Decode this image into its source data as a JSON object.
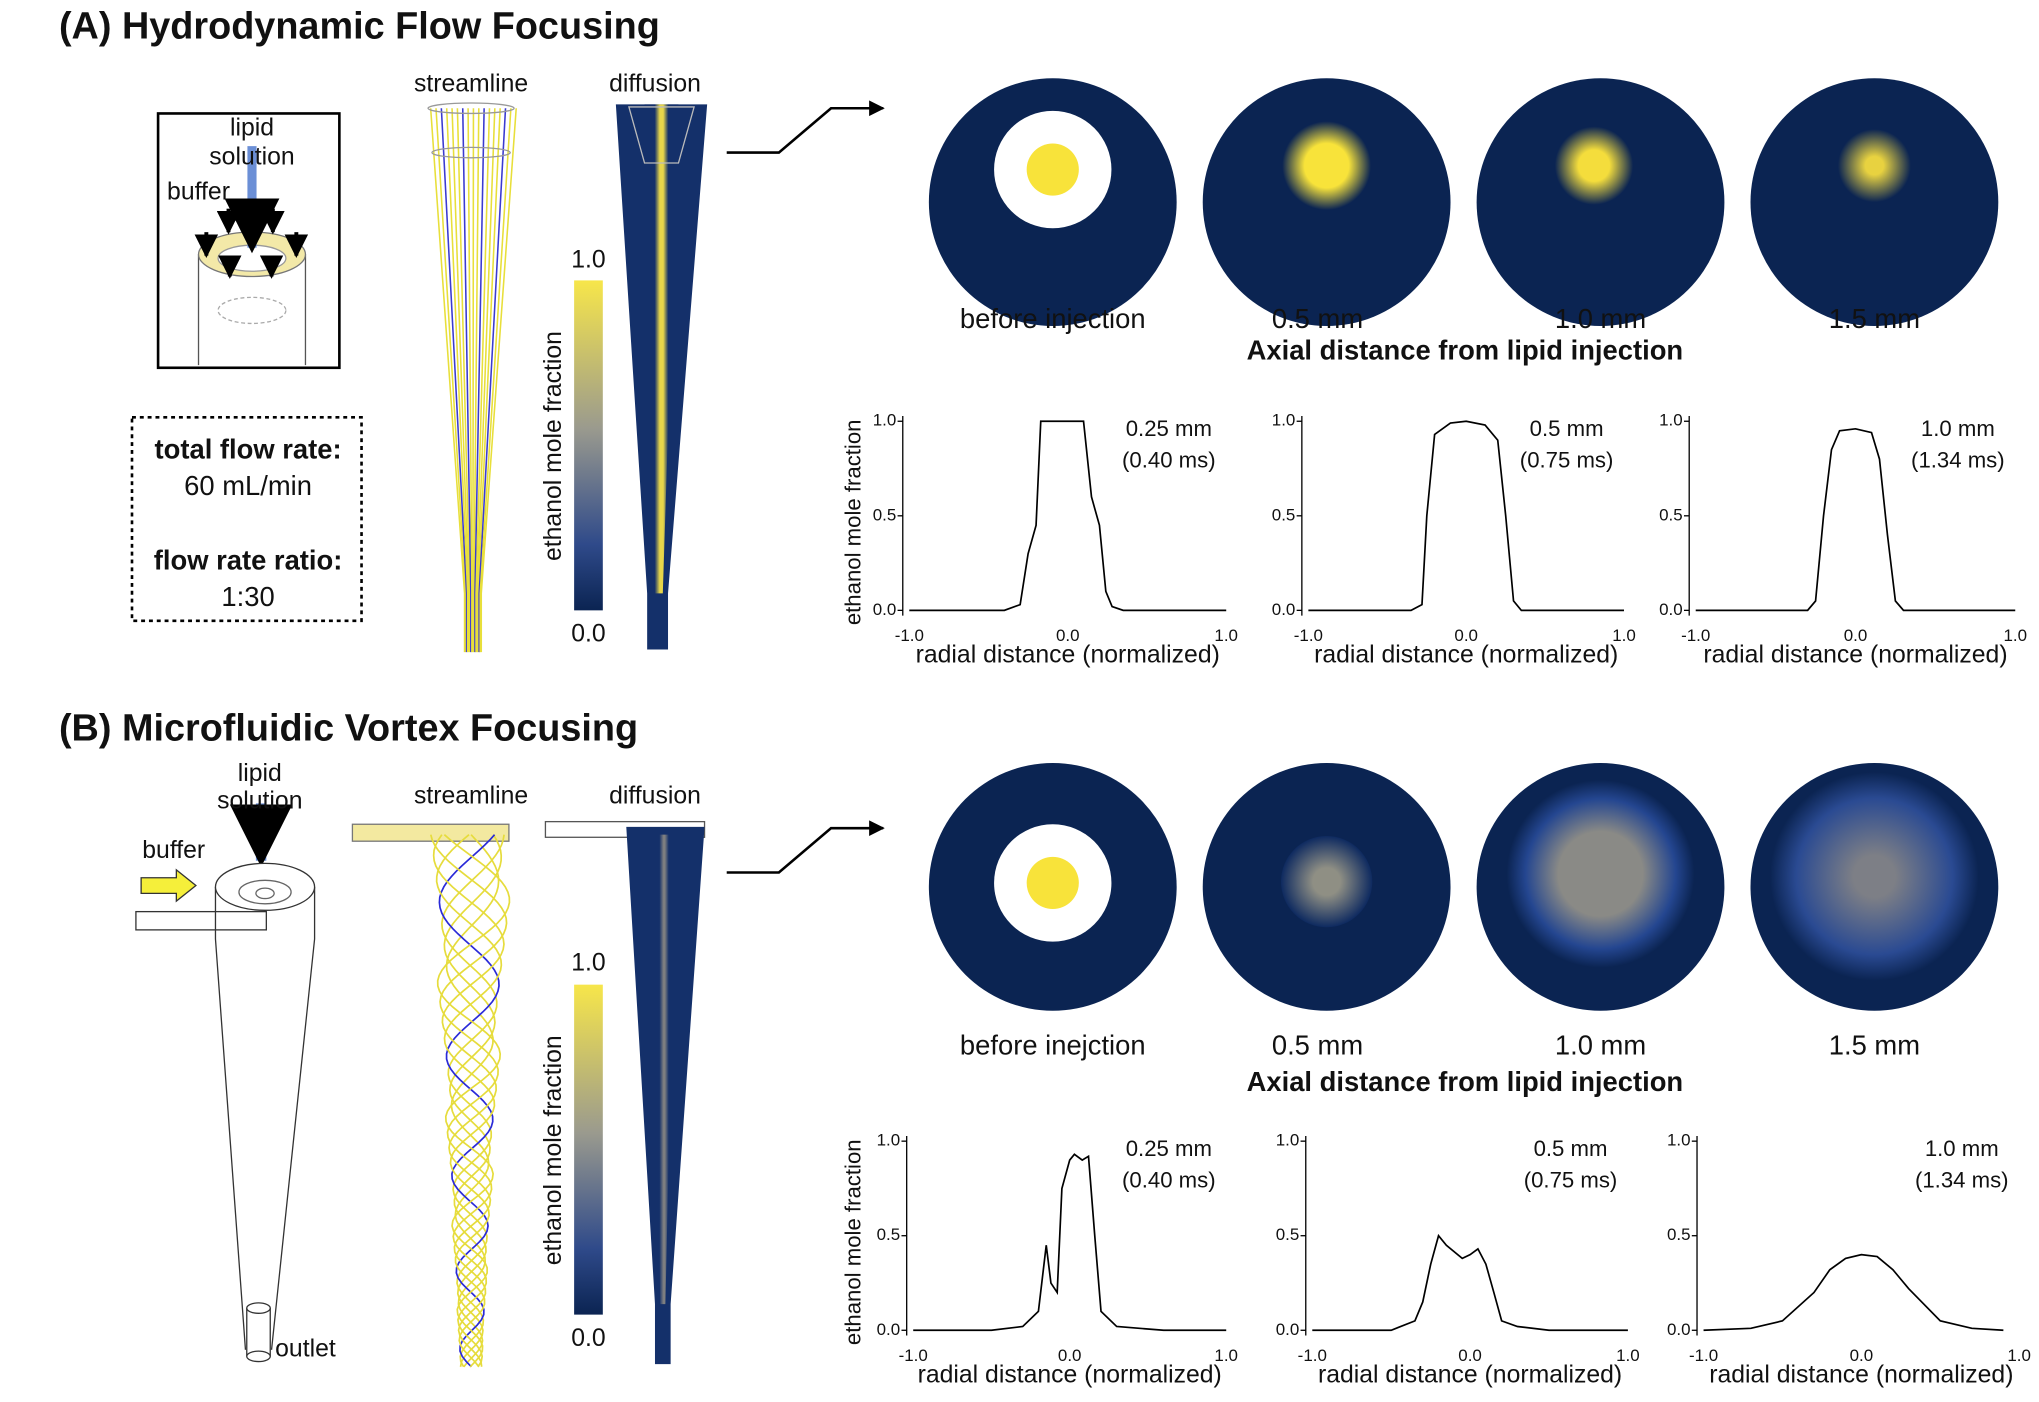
{
  "panels": [
    {
      "title": "(A) Hydrodynamic Flow Focusing",
      "lipid_label": [
        "lipid",
        "solution"
      ],
      "buffer_label": "buffer",
      "conditions": [
        "total flow rate:",
        "60 mL/min",
        "flow rate ratio:",
        "1:30"
      ],
      "streamline_label": "streamline",
      "diffusion_label": "diffusion",
      "colorbar": {
        "label": "ethanol mole fraction",
        "top": "1.0",
        "bottom": "0.0"
      },
      "cross_sections": [
        "before injection",
        "0.5 mm",
        "1.0 mm",
        "1.5 mm"
      ],
      "cross_section_axis": "Axial distance from lipid injection"
    },
    {
      "title": "(B) Microfluidic Vortex Focusing",
      "lipid_label": [
        "lipid",
        "solution"
      ],
      "buffer_label": "buffer",
      "outlet_label": "outlet",
      "streamline_label": "streamline",
      "diffusion_label": "diffusion",
      "colorbar": {
        "label": "ethanol mole fraction",
        "top": "1.0",
        "bottom": "0.0"
      },
      "cross_sections": [
        "before inejction",
        "0.5 mm",
        "1.0 mm",
        "1.5 mm"
      ],
      "cross_section_axis": "Axial distance from lipid injection"
    }
  ],
  "chart_data": [
    {
      "type": "line",
      "ylabel": "ethanol mole fraction",
      "xlabel": "radial distance (normalized)",
      "annotation": [
        "0.25 mm",
        "(0.40 ms)"
      ],
      "x": [
        -1,
        -0.4,
        -0.3,
        -0.25,
        -0.2,
        -0.17,
        -0.1,
        0,
        0.1,
        0.15,
        0.2,
        0.24,
        0.28,
        0.35,
        1
      ],
      "values": [
        0,
        0,
        0.03,
        0.3,
        0.45,
        1,
        1,
        1,
        1,
        0.6,
        0.45,
        0.1,
        0.02,
        0,
        0
      ],
      "xlim": [
        -1,
        1
      ],
      "ylim": [
        0,
        1
      ],
      "xticks": [
        {
          "value": -1,
          "label": "-1.0"
        },
        {
          "value": 0,
          "label": "0.0"
        },
        {
          "value": 1,
          "label": "1.0"
        }
      ],
      "yticks": [
        {
          "value": 0,
          "label": "0.0"
        },
        {
          "value": 0.5,
          "label": "0.5"
        },
        {
          "value": 1,
          "label": "1.0"
        }
      ]
    },
    {
      "type": "line",
      "xlabel": "radial distance (normalized)",
      "annotation": [
        "0.5 mm",
        "(0.75 ms)"
      ],
      "x": [
        -1,
        -0.35,
        -0.28,
        -0.25,
        -0.2,
        -0.1,
        0,
        0.12,
        0.2,
        0.25,
        0.3,
        0.35,
        1
      ],
      "values": [
        0,
        0,
        0.03,
        0.5,
        0.93,
        0.99,
        1,
        0.98,
        0.9,
        0.5,
        0.05,
        0,
        0
      ],
      "xlim": [
        -1,
        1
      ],
      "ylim": [
        0,
        1
      ],
      "xticks": [
        {
          "value": -1,
          "label": "-1.0"
        },
        {
          "value": 0,
          "label": "0.0"
        },
        {
          "value": 1,
          "label": "1.0"
        }
      ],
      "yticks": [
        {
          "value": 0,
          "label": "0.0"
        },
        {
          "value": 0.5,
          "label": "0.5"
        },
        {
          "value": 1,
          "label": "1.0"
        }
      ]
    },
    {
      "type": "line",
      "xlabel": "radial distance (normalized)",
      "annotation": [
        "1.0 mm",
        "(1.34 ms)"
      ],
      "x": [
        -1,
        -0.3,
        -0.25,
        -0.2,
        -0.15,
        -0.1,
        0,
        0.1,
        0.15,
        0.2,
        0.25,
        0.3,
        1
      ],
      "values": [
        0,
        0,
        0.05,
        0.5,
        0.85,
        0.95,
        0.96,
        0.94,
        0.8,
        0.4,
        0.05,
        0,
        0
      ],
      "xlim": [
        -1,
        1
      ],
      "ylim": [
        0,
        1
      ],
      "xticks": [
        {
          "value": -1,
          "label": "-1.0"
        },
        {
          "value": 0,
          "label": "0.0"
        },
        {
          "value": 1,
          "label": "1.0"
        }
      ],
      "yticks": [
        {
          "value": 0,
          "label": "0.0"
        },
        {
          "value": 0.5,
          "label": "0.5"
        },
        {
          "value": 1,
          "label": "1.0"
        }
      ]
    },
    {
      "type": "line",
      "ylabel": "ethanol mole fraction",
      "xlabel": "radial distance (normalized)",
      "annotation": [
        "0.25 mm",
        "(0.40 ms)"
      ],
      "x": [
        -1,
        -0.5,
        -0.3,
        -0.2,
        -0.15,
        -0.12,
        -0.08,
        -0.05,
        0,
        0.03,
        0.08,
        0.12,
        0.16,
        0.2,
        0.3,
        0.6,
        1
      ],
      "values": [
        0,
        0,
        0.02,
        0.1,
        0.45,
        0.25,
        0.2,
        0.75,
        0.9,
        0.93,
        0.9,
        0.92,
        0.5,
        0.1,
        0.02,
        0,
        0
      ],
      "xlim": [
        -1,
        1
      ],
      "ylim": [
        0,
        1
      ],
      "xticks": [
        {
          "value": -1,
          "label": "-1.0"
        },
        {
          "value": 0,
          "label": "0.0"
        },
        {
          "value": 1,
          "label": "1.0"
        }
      ],
      "yticks": [
        {
          "value": 0,
          "label": "0.0"
        },
        {
          "value": 0.5,
          "label": "0.5"
        },
        {
          "value": 1,
          "label": "1.0"
        }
      ]
    },
    {
      "type": "line",
      "xlabel": "radial distance (normalized)",
      "annotation": [
        "0.5 mm",
        "(0.75 ms)"
      ],
      "x": [
        -1,
        -0.5,
        -0.35,
        -0.3,
        -0.25,
        -0.2,
        -0.15,
        -0.05,
        0,
        0.05,
        0.1,
        0.15,
        0.2,
        0.3,
        0.5,
        1
      ],
      "values": [
        0,
        0,
        0.05,
        0.15,
        0.35,
        0.5,
        0.45,
        0.38,
        0.4,
        0.43,
        0.35,
        0.2,
        0.05,
        0.02,
        0,
        0
      ],
      "xlim": [
        -1,
        1
      ],
      "ylim": [
        0,
        1
      ],
      "xticks": [
        {
          "value": -1,
          "label": "-1.0"
        },
        {
          "value": 0,
          "label": "0.0"
        },
        {
          "value": 1,
          "label": "1.0"
        }
      ],
      "yticks": [
        {
          "value": 0,
          "label": "0.0"
        },
        {
          "value": 0.5,
          "label": "0.5"
        },
        {
          "value": 1,
          "label": "1.0"
        }
      ]
    },
    {
      "type": "line",
      "xlabel": "radial distance (normalized)",
      "annotation": [
        "1.0 mm",
        "(1.34 ms)"
      ],
      "x": [
        -1,
        -0.7,
        -0.5,
        -0.3,
        -0.2,
        -0.1,
        0,
        0.1,
        0.2,
        0.3,
        0.5,
        0.7,
        0.9
      ],
      "values": [
        0,
        0.01,
        0.05,
        0.2,
        0.32,
        0.38,
        0.4,
        0.39,
        0.32,
        0.22,
        0.05,
        0.01,
        0
      ],
      "xlim": [
        -1,
        1
      ],
      "ylim": [
        0,
        1
      ],
      "xticks": [
        {
          "value": -1,
          "label": "-1.0"
        },
        {
          "value": 0,
          "label": "0.0"
        },
        {
          "value": 1,
          "label": "1.0"
        }
      ],
      "yticks": [
        {
          "value": 0,
          "label": "0.0"
        },
        {
          "value": 0.5,
          "label": "0.5"
        },
        {
          "value": 1,
          "label": "1.0"
        }
      ]
    }
  ]
}
